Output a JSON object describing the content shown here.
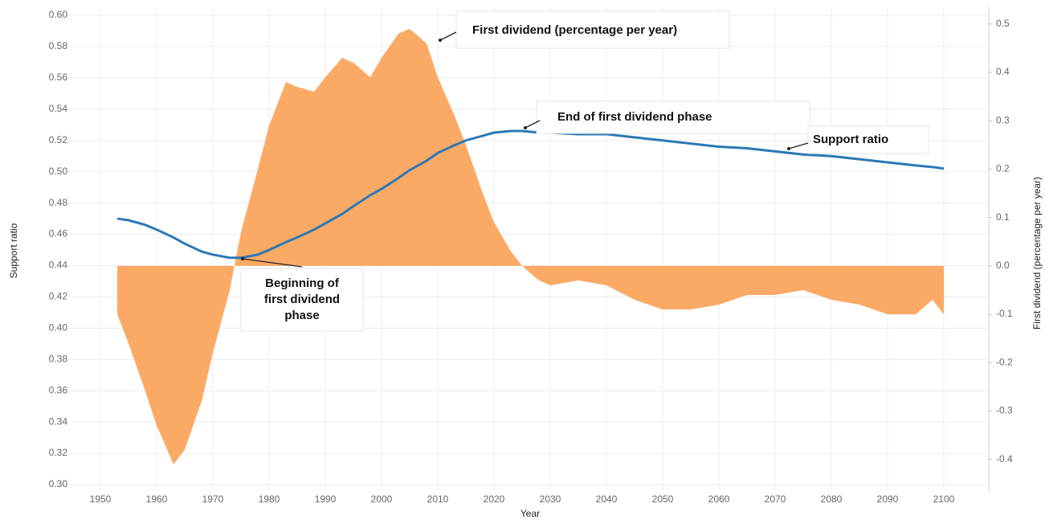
{
  "chart_data": {
    "type": "area-line",
    "x_label": "Year",
    "y_label": "Support ratio",
    "y2_label": "First dividend (percentage per year)",
    "x": [
      1953,
      1955,
      1958,
      1960,
      1963,
      1965,
      1968,
      1970,
      1973,
      1975,
      1978,
      1980,
      1983,
      1985,
      1988,
      1990,
      1993,
      1995,
      1998,
      2000,
      2003,
      2005,
      2008,
      2010,
      2013,
      2015,
      2018,
      2020,
      2023,
      2025,
      2028,
      2030,
      2035,
      2040,
      2045,
      2050,
      2055,
      2060,
      2065,
      2070,
      2075,
      2080,
      2085,
      2090,
      2095,
      2098,
      2100
    ],
    "series": [
      {
        "name": "First dividend (percentage per year)",
        "color": "#fbaa66",
        "kind": "area",
        "axis": "y2",
        "values": [
          -0.1,
          -0.16,
          -0.26,
          -0.33,
          -0.41,
          -0.38,
          -0.28,
          -0.18,
          -0.05,
          0.07,
          0.2,
          0.29,
          0.38,
          0.37,
          0.36,
          0.39,
          0.43,
          0.42,
          0.39,
          0.43,
          0.48,
          0.49,
          0.46,
          0.39,
          0.31,
          0.25,
          0.15,
          0.09,
          0.03,
          0.0,
          -0.03,
          -0.04,
          -0.03,
          -0.04,
          -0.07,
          -0.09,
          -0.09,
          -0.08,
          -0.06,
          -0.06,
          -0.05,
          -0.07,
          -0.08,
          -0.1,
          -0.1,
          -0.07,
          -0.1
        ]
      },
      {
        "name": "Support ratio",
        "color": "#2b78b5",
        "kind": "line",
        "values": [
          0.47,
          0.469,
          0.466,
          0.463,
          0.458,
          0.454,
          0.449,
          0.447,
          0.445,
          0.445,
          0.447,
          0.45,
          0.455,
          0.458,
          0.463,
          0.467,
          0.473,
          0.478,
          0.485,
          0.489,
          0.496,
          0.501,
          0.507,
          0.512,
          0.517,
          0.52,
          0.523,
          0.525,
          0.526,
          0.526,
          0.525,
          0.525,
          0.524,
          0.524,
          0.522,
          0.52,
          0.518,
          0.516,
          0.515,
          0.513,
          0.511,
          0.51,
          0.508,
          0.506,
          0.504,
          0.503,
          0.502
        ]
      }
    ],
    "xlim": [
      1944,
      2108
    ],
    "xticks": [
      1950,
      1960,
      1970,
      1980,
      1990,
      2000,
      2010,
      2020,
      2030,
      2040,
      2050,
      2060,
      2070,
      2080,
      2090,
      2100
    ],
    "ylim": [
      0.3,
      0.6
    ],
    "yticks": [
      {
        "value": 0.3,
        "label": "0.30"
      },
      0.32,
      0.34,
      0.36,
      0.38,
      {
        "value": 0.4,
        "label": "0.40"
      },
      0.42,
      0.44,
      0.46,
      0.48,
      {
        "value": 0.5,
        "label": "0.50"
      },
      0.52,
      0.54,
      0.56,
      0.58,
      {
        "value": 0.6,
        "label": "0.60"
      }
    ],
    "y2lim": [
      -0.452,
      0.518
    ],
    "y2ticks": [
      {
        "value": -0.4,
        "label": "-0.4"
      },
      {
        "value": -0.3,
        "label": "-0.3"
      },
      {
        "value": -0.2,
        "label": "-0.2"
      },
      {
        "value": -0.1,
        "label": "-0.1"
      },
      {
        "value": 0,
        "label": "0.0"
      },
      0.1,
      0.2,
      0.3,
      0.4,
      0.5
    ],
    "grid": true,
    "annotations": [
      {
        "lines": [
          "First dividend (percentage per year)"
        ]
      },
      {
        "lines": [
          "End of first dividend phase"
        ]
      },
      {
        "lines": [
          "Support ratio"
        ]
      },
      {
        "lines": [
          "Beginning of",
          "first dividend",
          "phase"
        ]
      }
    ]
  }
}
